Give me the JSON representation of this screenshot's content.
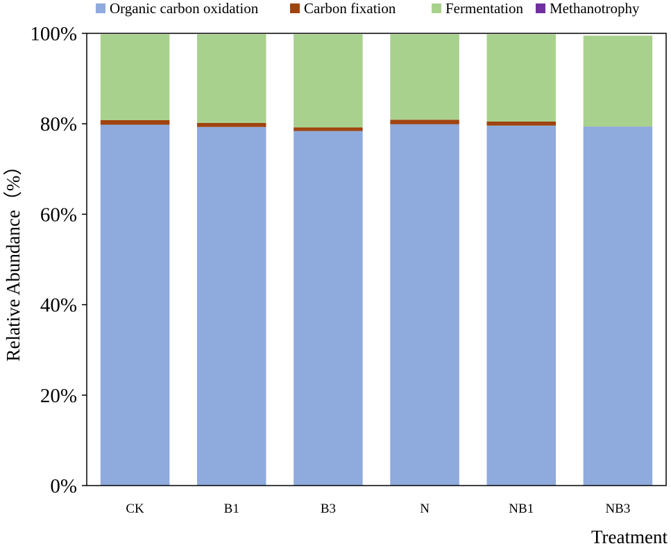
{
  "chart_data": {
    "type": "bar",
    "stacked": true,
    "title": "",
    "xlabel": "Treatment",
    "ylabel": "Relative Abundance（%）",
    "ylim": [
      0,
      100
    ],
    "yticks": [
      "0%",
      "20%",
      "40%",
      "60%",
      "80%",
      "100%"
    ],
    "grid": false,
    "legend_position": "top",
    "categories": [
      "CK",
      "B1",
      "B3",
      "N",
      "NB1",
      "NB3"
    ],
    "series": [
      {
        "name": "Organic carbon oxidation",
        "color": "#8faadc",
        "values": [
          79.8,
          79.3,
          78.4,
          79.9,
          79.6,
          79.4
        ]
      },
      {
        "name": "Carbon fixation",
        "color": "#a0440f",
        "values": [
          1.0,
          0.9,
          0.8,
          1.0,
          0.9,
          0.0
        ]
      },
      {
        "name": "Fermentation",
        "color": "#a9d18e",
        "values": [
          19.0,
          19.6,
          20.6,
          18.9,
          19.3,
          20.1
        ]
      },
      {
        "name": "Methanotrophy",
        "color": "#7030a0",
        "values": [
          0.0,
          0.0,
          0.0,
          0.0,
          0.0,
          0.0
        ]
      }
    ]
  }
}
